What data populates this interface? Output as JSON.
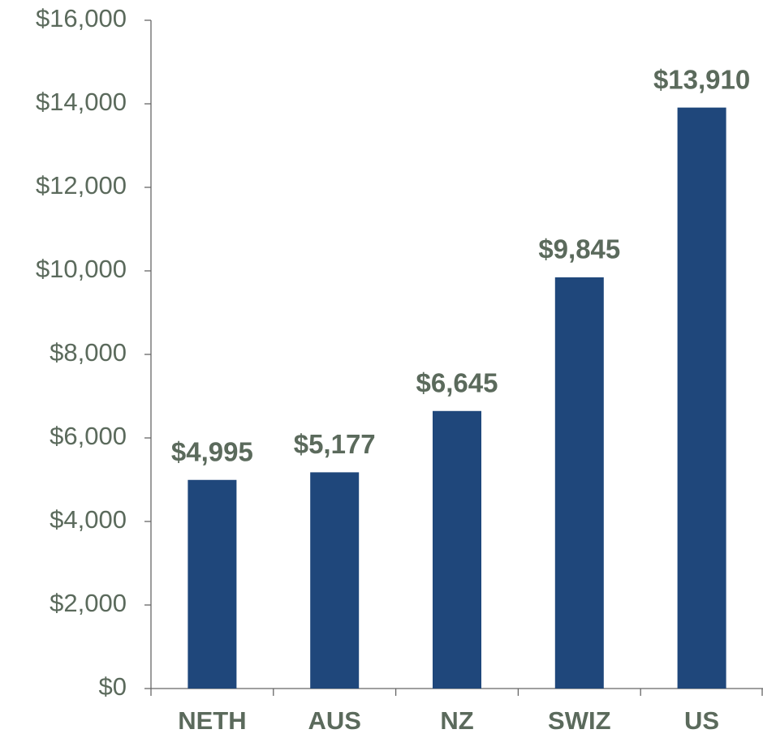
{
  "chart_data": {
    "type": "bar",
    "categories": [
      "NETH",
      "AUS",
      "NZ",
      "SWIZ",
      "US"
    ],
    "values": [
      4995,
      5177,
      6645,
      9845,
      13910
    ],
    "value_labels": [
      "$4,995",
      "$5,177",
      "$6,645",
      "$9,845",
      "$13,910"
    ],
    "color": "#1f477b",
    "ylim": [
      0,
      16000
    ],
    "yticks": [
      {
        "value": 0,
        "label": "$0"
      },
      {
        "value": 2000,
        "label": "$2,000"
      },
      {
        "value": 4000,
        "label": "$4,000"
      },
      {
        "value": 6000,
        "label": "$6,000"
      },
      {
        "value": 8000,
        "label": "$8,000"
      },
      {
        "value": 10000,
        "label": "$10,000"
      },
      {
        "value": 12000,
        "label": "$12,000"
      },
      {
        "value": 14000,
        "label": "$14,000"
      },
      {
        "value": 16000,
        "label": "$16,000"
      }
    ]
  }
}
